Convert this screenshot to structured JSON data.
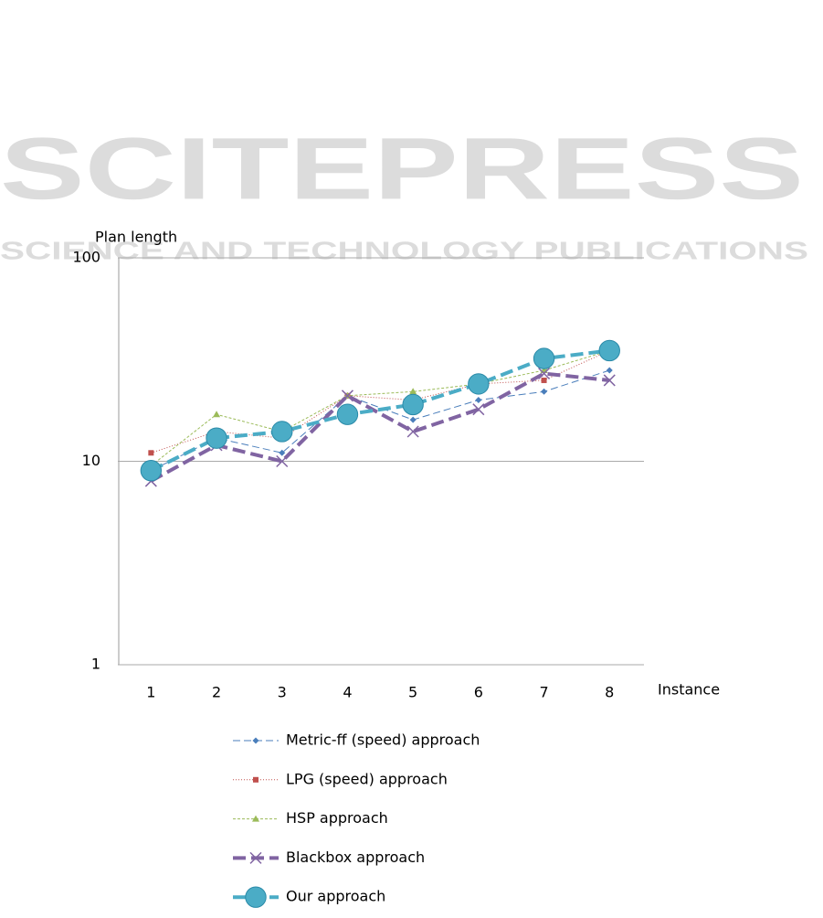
{
  "watermark": {
    "title": "SCITEPRESS",
    "subtitle": "SCIENCE AND TECHNOLOGY PUBLICATIONS"
  },
  "chart_data": {
    "type": "line",
    "y_label": "Plan length",
    "x_label": "Instance",
    "categories": [
      "1",
      "2",
      "3",
      "4",
      "5",
      "6",
      "7",
      "8"
    ],
    "log_scale": true,
    "ylim": [
      1,
      100
    ],
    "yticks": [
      1,
      10,
      100
    ],
    "grid": true,
    "series": [
      {
        "name": "Metric-ff (speed) approach",
        "color": "#4a7ebb",
        "marker": "diamond",
        "dash": "8 4",
        "width": 1,
        "values": [
          9,
          13,
          11,
          21,
          16,
          20,
          22,
          28
        ]
      },
      {
        "name": "LPG (speed) approach",
        "color": "#c0504d",
        "marker": "square",
        "dash": "1 2",
        "width": 1,
        "values": [
          11,
          14,
          13,
          21,
          20,
          24,
          25,
          35
        ]
      },
      {
        "name": "HSP approach",
        "color": "#9bbb59",
        "marker": "triangle",
        "dash": "3 2",
        "width": 1,
        "values": [
          9.5,
          17,
          14,
          21,
          22,
          24,
          28,
          35
        ]
      },
      {
        "name": "Blackbox approach",
        "color": "#8064a2",
        "marker": "x",
        "dash": "14 6",
        "width": 4,
        "values": [
          8,
          12,
          10,
          21,
          14,
          18,
          27,
          25
        ]
      },
      {
        "name": "Our approach",
        "color": "#4bacc6",
        "marker": "circle",
        "dash": "14 6",
        "width": 4,
        "values": [
          9,
          13,
          14,
          17,
          19,
          24,
          32,
          35
        ]
      }
    ]
  }
}
